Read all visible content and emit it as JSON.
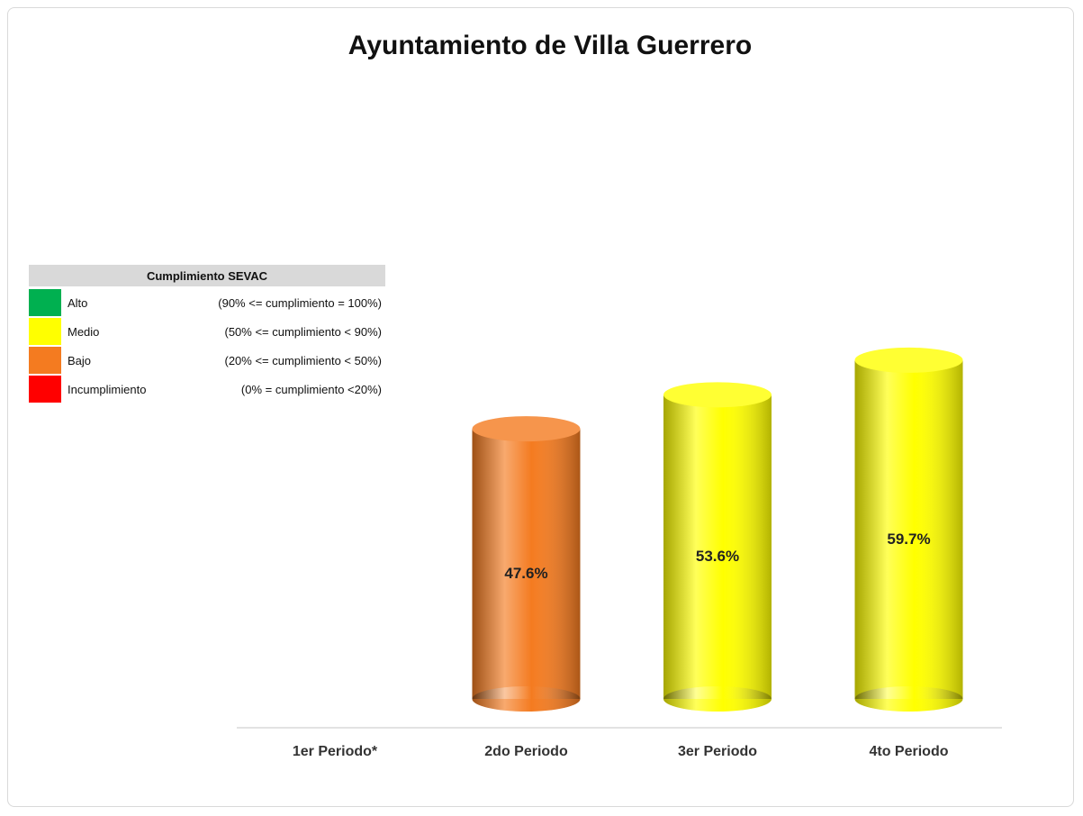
{
  "chart_data": {
    "type": "bar",
    "title": "Ayuntamiento de Villa Guerrero",
    "categories": [
      "1er Periodo*",
      "2do Periodo",
      "3er Periodo",
      "4to Periodo"
    ],
    "values": [
      null,
      47.6,
      53.6,
      59.7
    ],
    "value_labels": [
      null,
      "47.6%",
      "53.6%",
      "59.7%"
    ],
    "colors": [
      null,
      "#f47b20",
      "#ffff00",
      "#ffff00"
    ],
    "legend": {
      "title": "Cumplimiento SEVAC",
      "items": [
        {
          "name": "Alto",
          "range": "(90% <= cumplimiento = 100%)",
          "color": "#00b050"
        },
        {
          "name": "Medio",
          "range": "(50% <= cumplimiento < 90%)",
          "color": "#ffff00"
        },
        {
          "name": "Bajo",
          "range": "(20% <= cumplimiento < 50%)",
          "color": "#f47b20"
        },
        {
          "name": "Incumplimiento",
          "range": "(0% = cumplimiento <20%)",
          "color": "#ff0000"
        }
      ]
    }
  }
}
